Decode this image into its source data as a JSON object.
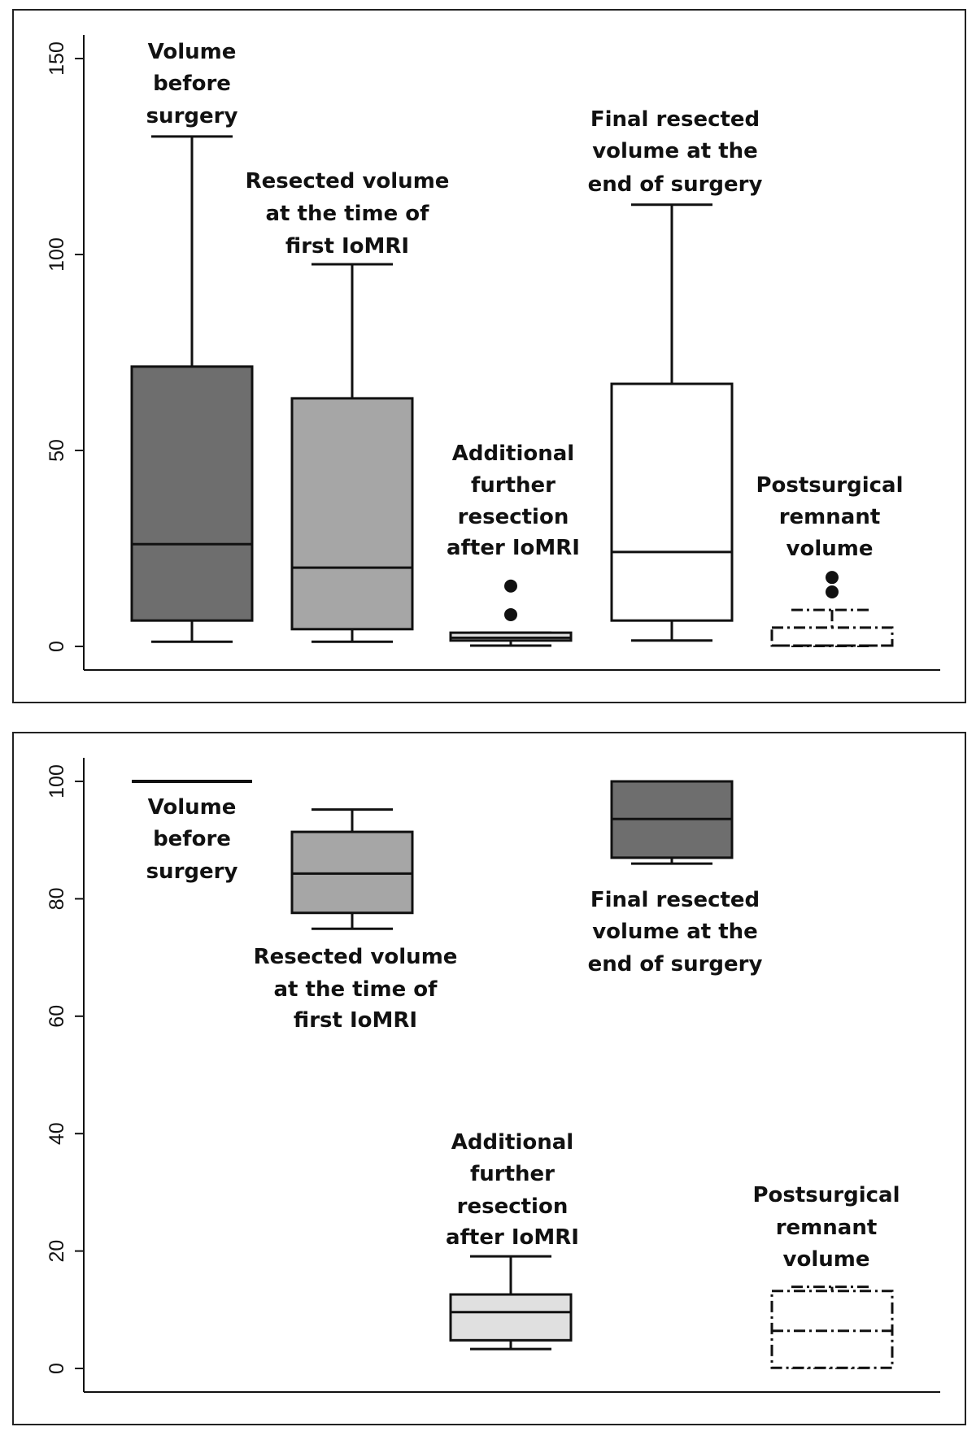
{
  "chart_data": [
    {
      "type": "box",
      "title": "",
      "xlabel": "",
      "ylabel": "",
      "ylim": [
        0,
        150
      ],
      "yticks": [
        0,
        50,
        100,
        150
      ],
      "grid": false,
      "legend": "none",
      "series": [
        {
          "name": "Volume before surgery",
          "label_lines": [
            "Volume",
            "before",
            "surgery"
          ],
          "label_position": "above",
          "fill": "#6e6e6e",
          "style": "solid",
          "whisker_low": 1.2,
          "q1": 6.6,
          "median": 26.1,
          "q3": 71.4,
          "whisker_high": 130.1,
          "outliers": []
        },
        {
          "name": "Resected volume at the time of first IoMRI",
          "label_lines": [
            "Resected volume",
            "at the time of",
            "first IoMRI"
          ],
          "label_position": "above",
          "fill": "#a6a6a6",
          "style": "solid",
          "whisker_low": 1.2,
          "q1": 4.4,
          "median": 20.1,
          "q3": 63.3,
          "whisker_high": 97.5,
          "outliers": []
        },
        {
          "name": "Additional further resection after IoMRI",
          "label_lines": [
            "Additional",
            "further",
            "resection",
            "after IoMRI"
          ],
          "label_position": "above",
          "fill": "#e0e0e0",
          "style": "solid",
          "whisker_low": 0.2,
          "q1": 1.5,
          "median": 2.2,
          "q3": 3.5,
          "whisker_high": 3.5,
          "outliers": [
            8.1,
            15.4
          ]
        },
        {
          "name": "Final resected volume at the end of surgery",
          "label_lines": [
            "Final resected",
            "volume at the",
            "end of surgery"
          ],
          "label_position": "above",
          "fill": "#ffffff",
          "style": "solid",
          "whisker_low": 1.5,
          "q1": 6.6,
          "median": 24.1,
          "q3": 67.0,
          "whisker_high": 112.7,
          "outliers": []
        },
        {
          "name": "Postsurgical remnant volume",
          "label_lines": [
            "Postsurgical",
            "remnant",
            "volume"
          ],
          "label_position": "above",
          "fill": "#ffffff",
          "style": "dashdot",
          "whisker_low": 0.1,
          "q1": 0.2,
          "median": 0.2,
          "q3": 4.8,
          "whisker_high": 9.3,
          "outliers": [
            13.9,
            17.6
          ]
        }
      ]
    },
    {
      "type": "box",
      "title": "",
      "xlabel": "",
      "ylabel": "",
      "ylim": [
        0,
        100
      ],
      "yticks": [
        0,
        20,
        40,
        60,
        80,
        100
      ],
      "grid": false,
      "legend": "none",
      "series": [
        {
          "name": "Volume before surgery",
          "label_lines": [
            "Volume",
            "before",
            "surgery"
          ],
          "label_position": "below",
          "fill": "#6e6e6e",
          "style": "solid",
          "whisker_low": 100,
          "q1": 100,
          "median": 100,
          "q3": 100,
          "whisker_high": 100,
          "outliers": []
        },
        {
          "name": "Resected volume at the time of first IoMRI",
          "label_lines": [
            "Resected volume",
            "at the time of",
            "first IoMRI"
          ],
          "label_position": "below",
          "fill": "#a6a6a6",
          "style": "solid",
          "whisker_low": 74.9,
          "q1": 77.6,
          "median": 84.3,
          "q3": 91.4,
          "whisker_high": 95.2,
          "outliers": []
        },
        {
          "name": "Additional further resection after IoMRI",
          "label_lines": [
            "Additional",
            "further",
            "resection",
            "after IoMRI"
          ],
          "label_position": "above",
          "fill": "#e0e0e0",
          "style": "solid",
          "whisker_low": 3.3,
          "q1": 4.8,
          "median": 9.6,
          "q3": 12.6,
          "whisker_high": 19.1,
          "outliers": []
        },
        {
          "name": "Final resected volume at the end of surgery",
          "label_lines": [
            "Final resected",
            "volume at the",
            "end of surgery"
          ],
          "label_position": "below",
          "fill": "#6e6e6e",
          "style": "solid",
          "whisker_low": 86.0,
          "q1": 87.0,
          "median": 93.6,
          "q3": 100,
          "whisker_high": 100,
          "outliers": []
        },
        {
          "name": "Postsurgical remnant volume",
          "label_lines": [
            "Postsurgical",
            "remnant",
            "volume"
          ],
          "label_position": "above",
          "fill": "#ffffff",
          "style": "dashdot",
          "whisker_low": 0.1,
          "q1": 0.1,
          "median": 6.4,
          "q3": 13.2,
          "whisker_high": 13.9,
          "outliers": []
        }
      ]
    }
  ]
}
